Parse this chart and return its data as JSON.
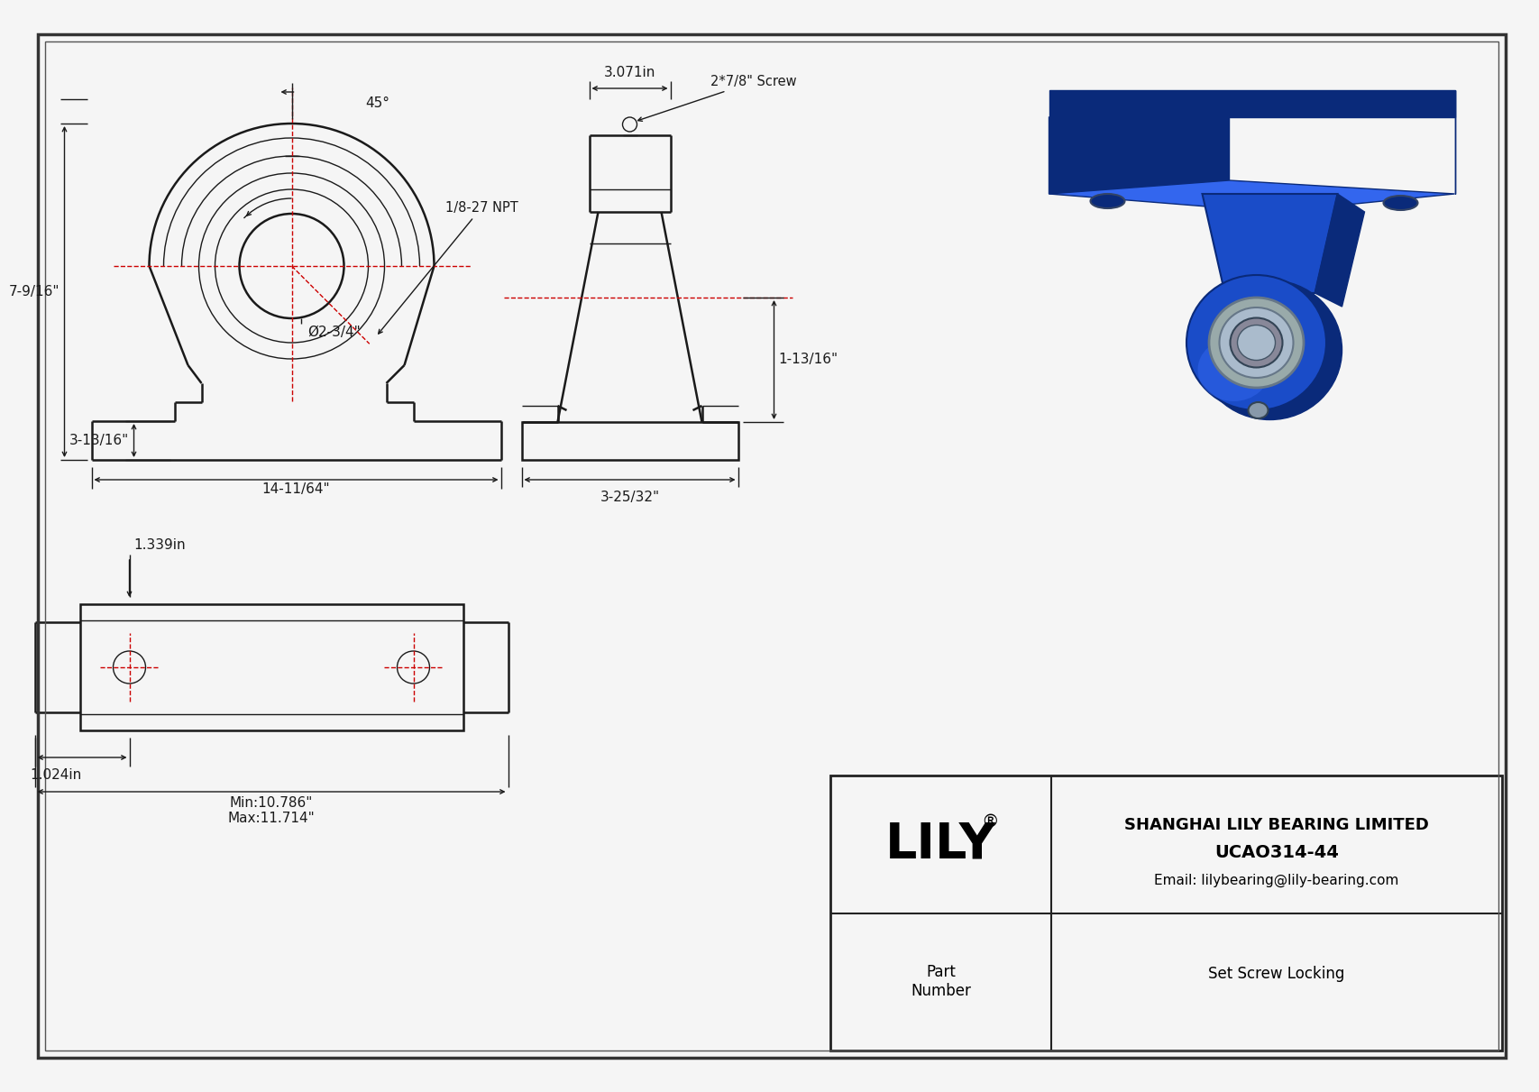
{
  "bg_color": "#f5f5f5",
  "line_color": "#1a1a1a",
  "dim_color": "#1a1a1a",
  "red_color": "#cc0000",
  "border_color": "#333333",
  "company": "SHANGHAI LILY BEARING LIMITED",
  "email": "Email: lilybearing@lily-bearing.com",
  "part_number": "UCAO314-44",
  "part_type": "Set Screw Locking",
  "part_label": "Part\nNumber",
  "dim_45": "45°",
  "dim_npt": "1/8-27 NPT",
  "dim_height": "7-9/16\"",
  "dim_base_h": "3-13/16\"",
  "dim_width": "14-11/64\"",
  "dim_bore": "Ø2-3/4\"",
  "dim_side_h": "1-13/16\"",
  "dim_side_w": "3-25/32\"",
  "dim_side_top": "3.071in",
  "dim_screw": "2*7/8\" Screw",
  "dim_bolt1": "1.339in",
  "dim_bolt2": "1.024in",
  "dim_min": "Min:10.786\"",
  "dim_max": "Max:11.714\""
}
